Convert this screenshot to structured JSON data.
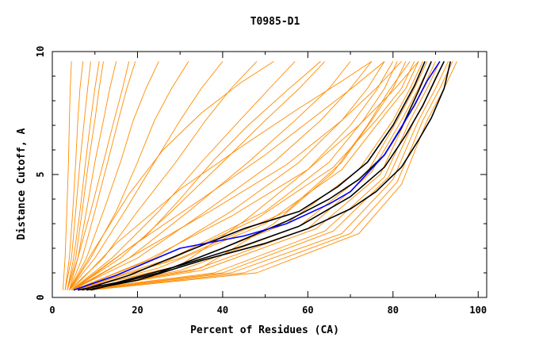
{
  "chart_data": {
    "type": "line",
    "title": "T0985-D1",
    "xlabel": "Percent of Residues (CA)",
    "ylabel": "Distance Cutoff, A",
    "xlim": [
      0,
      102
    ],
    "ylim": [
      0,
      10
    ],
    "x_ticks": [
      0,
      20,
      40,
      60,
      80,
      100
    ],
    "x_tick_labels": [
      "0",
      "20",
      "40",
      "60",
      "80",
      "100"
    ],
    "y_ticks": [
      0,
      5,
      10
    ],
    "y_tick_labels": [
      "0",
      "5",
      "10"
    ],
    "grid": false,
    "colors": {
      "bundle": "#ff8c00",
      "highlight": "#000000",
      "reference": "#0000ff"
    },
    "series": [
      {
        "name": "best-blue",
        "color": "#0000ff",
        "x": [
          5,
          15,
          30,
          45,
          55,
          65,
          70,
          78,
          85,
          88,
          91
        ],
        "y": [
          0.3,
          0.9,
          2.0,
          2.5,
          3.0,
          3.8,
          4.3,
          5.8,
          7.8,
          8.8,
          9.6
        ]
      },
      {
        "name": "black-1",
        "color": "#000000",
        "x": [
          8,
          20,
          35,
          50,
          60,
          70,
          76,
          82,
          86,
          89,
          92,
          93.5
        ],
        "y": [
          0.3,
          0.7,
          1.5,
          2.2,
          2.8,
          3.6,
          4.3,
          5.3,
          6.4,
          7.3,
          8.5,
          9.6
        ]
      },
      {
        "name": "black-2",
        "color": "#000000",
        "x": [
          6,
          15,
          30,
          45,
          58,
          70,
          78,
          83,
          87,
          90,
          92
        ],
        "y": [
          0.3,
          0.6,
          1.3,
          2.1,
          2.9,
          4.1,
          5.3,
          6.6,
          7.8,
          8.9,
          9.6
        ]
      },
      {
        "name": "black-3",
        "color": "#000000",
        "x": [
          7,
          18,
          32,
          45,
          58,
          67,
          74,
          80,
          85,
          87.5
        ],
        "y": [
          0.3,
          0.9,
          1.9,
          2.8,
          3.5,
          4.5,
          5.5,
          7.0,
          8.6,
          9.6
        ]
      },
      {
        "name": "black-4",
        "color": "#000000",
        "x": [
          9,
          25,
          40,
          55,
          65,
          72,
          78,
          82,
          86,
          89
        ],
        "y": [
          0.3,
          1.0,
          2.0,
          3.1,
          4.0,
          4.8,
          5.8,
          6.9,
          8.4,
          9.6
        ]
      },
      {
        "name": "model-01",
        "color": "#ff8c00",
        "x": [
          2.5,
          3.0,
          3.4,
          3.8,
          4.0,
          4.2,
          4.5
        ],
        "y": [
          0.3,
          1.6,
          3.5,
          5.5,
          7.2,
          8.5,
          9.6
        ]
      },
      {
        "name": "model-02",
        "color": "#ff8c00",
        "x": [
          3.0,
          4.0,
          4.8,
          5.5,
          6.0,
          6.5,
          7.2
        ],
        "y": [
          0.3,
          1.6,
          3.5,
          5.5,
          7.2,
          8.5,
          9.6
        ]
      },
      {
        "name": "model-03",
        "color": "#ff8c00",
        "x": [
          3.0,
          4.5,
          5.5,
          6.5,
          7.5,
          8.3,
          9.0
        ],
        "y": [
          0.3,
          1.6,
          3.5,
          5.5,
          7.2,
          8.5,
          9.6
        ]
      },
      {
        "name": "model-04",
        "color": "#ff8c00",
        "x": [
          3.5,
          5.5,
          7.0,
          8.5,
          10.0,
          11.0,
          12.0
        ],
        "y": [
          0.3,
          1.6,
          3.5,
          5.5,
          7.2,
          8.5,
          9.6
        ]
      },
      {
        "name": "model-05",
        "color": "#ff8c00",
        "x": [
          3.5,
          6.0,
          8.0,
          10.0,
          12.0,
          13.5,
          15.0
        ],
        "y": [
          0.3,
          1.6,
          3.5,
          5.5,
          7.2,
          8.5,
          9.6
        ]
      },
      {
        "name": "model-06",
        "color": "#ff8c00",
        "x": [
          4.0,
          7.0,
          10.0,
          13.0,
          15.5,
          17.5,
          19.5
        ],
        "y": [
          0.3,
          1.6,
          3.5,
          5.5,
          7.2,
          8.5,
          9.6
        ]
      },
      {
        "name": "model-07",
        "color": "#ff8c00",
        "x": [
          4.0,
          8.0,
          12.0,
          16.0,
          19.0,
          22.0,
          25.0
        ],
        "y": [
          0.3,
          1.6,
          3.5,
          5.5,
          7.2,
          8.5,
          9.6
        ]
      },
      {
        "name": "model-08",
        "color": "#ff8c00",
        "x": [
          4.0,
          9.0,
          15.0,
          20.0,
          24.0,
          28.0,
          32.0
        ],
        "y": [
          0.3,
          1.6,
          3.5,
          5.5,
          7.2,
          8.5,
          9.6
        ]
      },
      {
        "name": "model-09",
        "color": "#ff8c00",
        "x": [
          4.0,
          10.0,
          17.0,
          24.0,
          30.0,
          35.0,
          40.0
        ],
        "y": [
          0.3,
          1.6,
          3.5,
          5.5,
          7.2,
          8.5,
          9.6
        ]
      },
      {
        "name": "model-10",
        "color": "#ff8c00",
        "x": [
          4.0,
          12.0,
          20.0,
          29.0,
          36.0,
          42.0,
          48.0
        ],
        "y": [
          0.3,
          1.6,
          3.5,
          5.5,
          7.2,
          8.5,
          9.6
        ]
      },
      {
        "name": "model-11",
        "color": "#ff8c00",
        "x": [
          4.5,
          14.0,
          25.0,
          35.0,
          44.0,
          51.0,
          57.0
        ],
        "y": [
          0.3,
          1.6,
          3.5,
          5.5,
          7.2,
          8.5,
          9.6
        ]
      },
      {
        "name": "model-12",
        "color": "#ff8c00",
        "x": [
          4.5,
          16.0,
          28.0,
          40.0,
          50.0,
          58.0,
          64.0
        ],
        "y": [
          0.3,
          1.6,
          3.5,
          5.5,
          7.2,
          8.5,
          9.6
        ]
      },
      {
        "name": "model-13",
        "color": "#ff8c00",
        "x": [
          4.5,
          18.0,
          32.0,
          46.0,
          57.0,
          65.0,
          70.0
        ],
        "y": [
          0.3,
          1.6,
          3.5,
          5.5,
          7.2,
          8.5,
          9.6
        ]
      },
      {
        "name": "model-14",
        "color": "#ff8c00",
        "x": [
          4.5,
          20.0,
          36.0,
          52.0,
          63.0,
          70.0,
          75.0
        ],
        "y": [
          0.3,
          1.6,
          3.5,
          5.5,
          7.2,
          8.5,
          9.6
        ]
      },
      {
        "name": "model-15",
        "color": "#ff8c00",
        "x": [
          5.0,
          24.0,
          42.0,
          58.0,
          68.0,
          74.0,
          78.0
        ],
        "y": [
          0.3,
          1.6,
          3.5,
          5.5,
          7.2,
          8.5,
          9.6
        ]
      },
      {
        "name": "model-16",
        "color": "#ff8c00",
        "x": [
          5.0,
          28.0,
          50.0,
          65.0,
          73.0,
          78.0,
          81.0
        ],
        "y": [
          0.3,
          1.6,
          3.5,
          5.5,
          7.2,
          8.5,
          9.6
        ]
      },
      {
        "name": "model-17",
        "color": "#ff8c00",
        "x": [
          5.0,
          30.0,
          55.0,
          68.0,
          75.0,
          80.0,
          83.0
        ],
        "y": [
          0.3,
          1.6,
          3.5,
          5.5,
          7.2,
          8.5,
          9.6
        ]
      },
      {
        "name": "model-18",
        "color": "#ff8c00",
        "x": [
          5.0,
          26.0,
          48.0,
          66.0,
          76.0,
          82.0,
          85.0
        ],
        "y": [
          0.3,
          1.4,
          3.2,
          5.3,
          7.2,
          8.5,
          9.6
        ]
      },
      {
        "name": "model-19",
        "color": "#ff8c00",
        "x": [
          5.0,
          25.0,
          50.0,
          68.0,
          77.0,
          83.0,
          86.0
        ],
        "y": [
          0.3,
          1.2,
          3.0,
          5.2,
          7.2,
          8.5,
          9.6
        ]
      },
      {
        "name": "model-20",
        "color": "#ff8c00",
        "x": [
          5.0,
          28.0,
          55.0,
          72.0,
          80.0,
          84.0,
          87.0
        ],
        "y": [
          0.3,
          1.2,
          3.0,
          5.2,
          7.2,
          8.5,
          9.6
        ]
      },
      {
        "name": "model-21",
        "color": "#ff8c00",
        "x": [
          6.0,
          30.0,
          58.0,
          74.0,
          81.0,
          85.0,
          88.0
        ],
        "y": [
          0.3,
          1.1,
          2.9,
          5.1,
          7.2,
          8.5,
          9.6
        ]
      },
      {
        "name": "model-22",
        "color": "#ff8c00",
        "x": [
          6.0,
          33.0,
          60.0,
          75.0,
          82.0,
          86.0,
          89.0
        ],
        "y": [
          0.3,
          1.1,
          2.8,
          5.1,
          7.2,
          8.5,
          9.6
        ]
      },
      {
        "name": "model-23",
        "color": "#ff8c00",
        "x": [
          6.0,
          35.0,
          62.0,
          77.0,
          83.0,
          87.0,
          90.0
        ],
        "y": [
          0.3,
          1.1,
          2.8,
          5.0,
          7.2,
          8.5,
          9.6
        ]
      },
      {
        "name": "model-24",
        "color": "#ff8c00",
        "x": [
          6.0,
          38.0,
          64.0,
          78.0,
          84.0,
          88.0,
          91.0
        ],
        "y": [
          0.3,
          1.0,
          2.7,
          4.9,
          7.2,
          8.5,
          9.6
        ]
      },
      {
        "name": "model-25",
        "color": "#ff8c00",
        "x": [
          7.0,
          40.0,
          66.0,
          79.0,
          85.0,
          89.0,
          92.0
        ],
        "y": [
          0.3,
          1.0,
          2.7,
          4.9,
          7.2,
          8.5,
          9.6
        ]
      },
      {
        "name": "model-26",
        "color": "#ff8c00",
        "x": [
          7.0,
          42.0,
          68.0,
          80.0,
          86.0,
          90.0,
          93.0
        ],
        "y": [
          0.3,
          1.0,
          2.6,
          4.8,
          7.2,
          8.5,
          9.6
        ]
      },
      {
        "name": "model-27",
        "color": "#ff8c00",
        "x": [
          8.0,
          45.0,
          70.0,
          81.0,
          87.0,
          91.0,
          94.0
        ],
        "y": [
          0.3,
          1.0,
          2.6,
          4.7,
          7.2,
          8.5,
          9.6
        ]
      },
      {
        "name": "model-28",
        "color": "#ff8c00",
        "x": [
          9.0,
          48.0,
          72.0,
          82.0,
          88.0,
          92.0,
          95.0
        ],
        "y": [
          0.3,
          1.0,
          2.6,
          4.6,
          7.2,
          8.5,
          9.6
        ]
      },
      {
        "name": "model-29",
        "color": "#ff8c00",
        "x": [
          5.0,
          20.0,
          38.0,
          55.0,
          68.0,
          76.0,
          82.0
        ],
        "y": [
          0.3,
          1.8,
          3.6,
          5.4,
          7.2,
          8.5,
          9.6
        ]
      },
      {
        "name": "model-30",
        "color": "#ff8c00",
        "x": [
          5.0,
          18.0,
          35.0,
          50.0,
          62.0,
          71.0,
          78.0
        ],
        "y": [
          0.3,
          2.0,
          4.0,
          5.8,
          7.4,
          8.6,
          9.6
        ]
      },
      {
        "name": "model-31",
        "color": "#ff8c00",
        "x": [
          4.5,
          15.0,
          30.0,
          45.0,
          58.0,
          68.0,
          75.0
        ],
        "y": [
          0.3,
          2.2,
          4.4,
          6.2,
          7.7,
          8.8,
          9.6
        ]
      },
      {
        "name": "model-32",
        "color": "#ff8c00",
        "x": [
          4.5,
          22.0,
          30.0,
          38.0,
          46.0,
          55.0,
          63.0
        ],
        "y": [
          0.3,
          2.5,
          4.0,
          5.6,
          7.0,
          8.4,
          9.6
        ]
      },
      {
        "name": "model-33",
        "color": "#ff8c00",
        "x": [
          4.0,
          10.0,
          18.0,
          26.0,
          35.0,
          44.0,
          52.0
        ],
        "y": [
          0.3,
          2.0,
          4.2,
          6.0,
          7.5,
          8.7,
          9.6
        ]
      },
      {
        "name": "model-34",
        "color": "#ff8c00",
        "x": [
          4.0,
          6.0,
          9.0,
          12.0,
          14.5,
          16.5,
          18.0
        ],
        "y": [
          0.3,
          1.6,
          3.5,
          5.5,
          7.2,
          8.5,
          9.6
        ]
      },
      {
        "name": "model-35",
        "color": "#ff8c00",
        "x": [
          3.5,
          5.0,
          6.5,
          7.8,
          9.0,
          10.0,
          11.0
        ],
        "y": [
          0.3,
          1.6,
          3.5,
          5.5,
          7.2,
          8.5,
          9.6
        ]
      },
      {
        "name": "model-36",
        "color": "#ff8c00",
        "x": [
          5.0,
          30.0,
          45.0,
          60.0,
          70.0,
          76.0,
          80.0
        ],
        "y": [
          0.3,
          1.3,
          3.1,
          5.2,
          7.0,
          8.4,
          9.6
        ]
      },
      {
        "name": "model-37",
        "color": "#ff8c00",
        "x": [
          6.0,
          35.0,
          52.0,
          66.0,
          74.0,
          79.0,
          84.0
        ],
        "y": [
          0.3,
          1.2,
          3.0,
          5.1,
          7.0,
          8.4,
          9.6
        ]
      },
      {
        "name": "model-38",
        "color": "#ff8c00",
        "x": [
          5.0,
          22.0,
          42.0,
          60.0,
          72.0,
          80.0,
          86.0
        ],
        "y": [
          0.3,
          1.5,
          3.3,
          5.2,
          7.0,
          8.4,
          9.6
        ]
      }
    ]
  }
}
